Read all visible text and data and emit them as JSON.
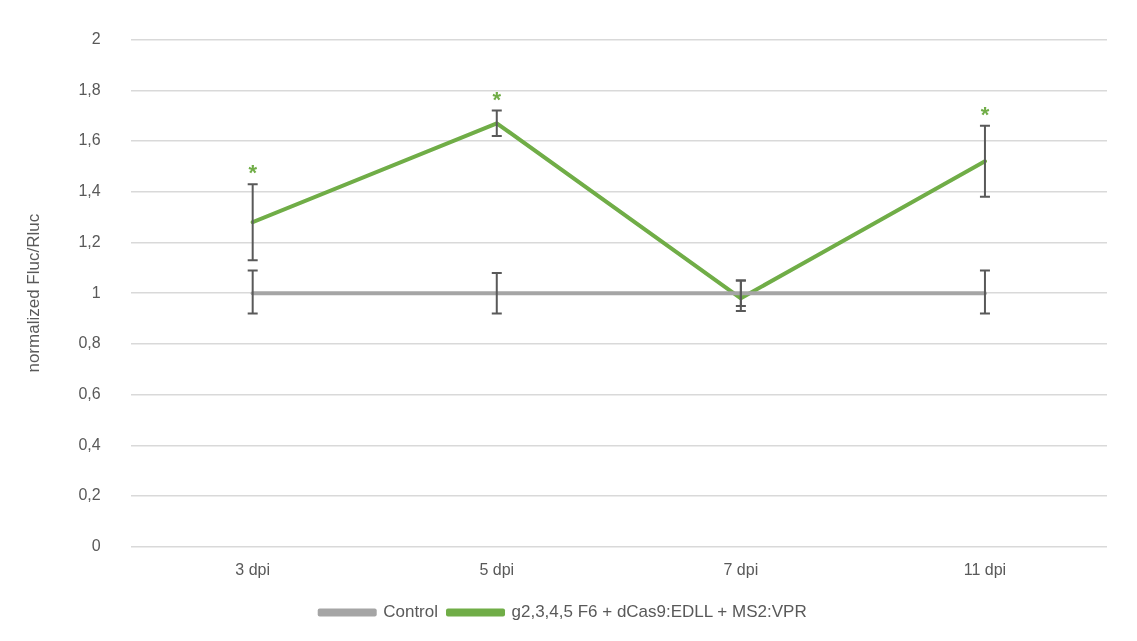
{
  "chart_data": {
    "type": "line",
    "ylabel": "normalized Fluc/Rluc",
    "categories": [
      "3 dpi",
      "5 dpi",
      "7 dpi",
      "11 dpi"
    ],
    "series": [
      {
        "name": "Control",
        "color": "#a5a5a5",
        "values": [
          1,
          1,
          1,
          1
        ],
        "errors": [
          [
            0.92,
            1.09
          ],
          [
            0.92,
            1.08
          ],
          [
            0.95,
            1.05
          ],
          [
            0.92,
            1.09
          ]
        ]
      },
      {
        "name": "g2,3,4,5 F6 + dCas9:EDLL + MS2:VPR",
        "color": "#70ad47",
        "values": [
          1.28,
          1.67,
          0.98,
          1.52
        ],
        "errors": [
          [
            1.13,
            1.43
          ],
          [
            1.62,
            1.72
          ],
          [
            0.93,
            1.05
          ],
          [
            1.38,
            1.66
          ]
        ]
      }
    ],
    "ylim": [
      0,
      2
    ],
    "yticks": [
      0,
      {
        "value": 0.2,
        "label": "0,2"
      },
      {
        "value": 0.4,
        "label": "0,4"
      },
      {
        "value": 0.6,
        "label": "0,6"
      },
      {
        "value": 0.8,
        "label": "0,8"
      },
      1,
      {
        "value": 1.2,
        "label": "1,2"
      },
      {
        "value": 1.4,
        "label": "1,4"
      },
      {
        "value": 1.6,
        "label": "1,6"
      },
      {
        "value": 1.8,
        "label": "1,8"
      },
      2
    ],
    "grid": "y",
    "legend": "bottom",
    "marker": "none",
    "line_style": "solid",
    "annotations": [
      {
        "text": "*",
        "x": "3 dpi",
        "y": 1.28
      },
      {
        "text": "*",
        "x": "5 dpi",
        "y": 1.67
      },
      {
        "text": "*",
        "x": "11 dpi",
        "y": 1.52
      }
    ]
  }
}
